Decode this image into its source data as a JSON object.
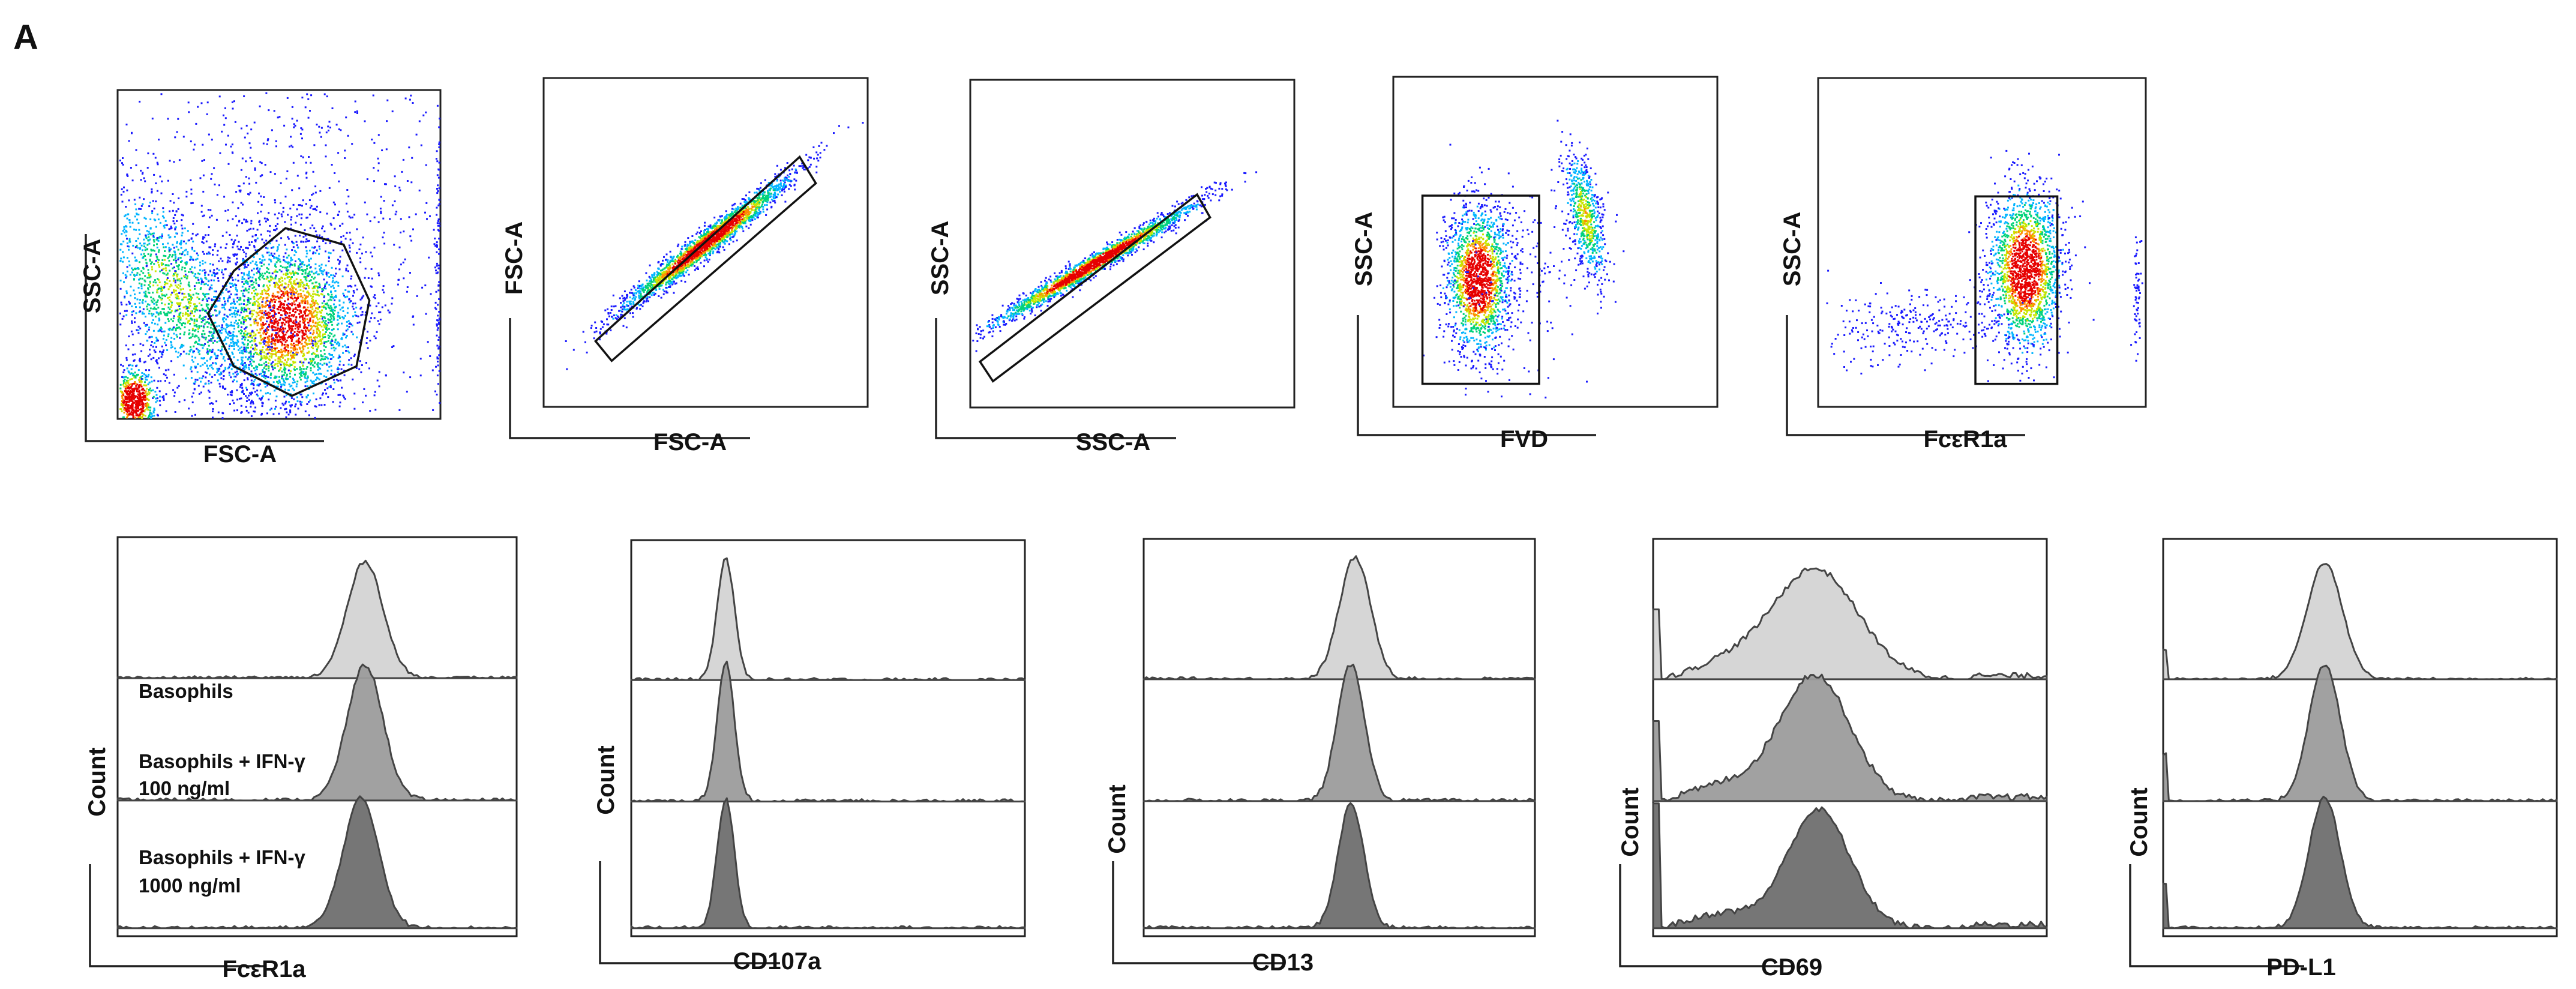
{
  "figure": {
    "panel_label": "A",
    "colors": {
      "density": [
        "#1a1aff",
        "#00b4ff",
        "#00d27a",
        "#c8e600",
        "#ff8c00",
        "#e60000"
      ],
      "histogram_fills": [
        "#d4d4d4",
        "#9c9c9c",
        "#6f6f6f"
      ],
      "histogram_outline": "#444444"
    }
  },
  "chart_data": [
    {
      "type": "scatter",
      "plot": "density",
      "xlabel": "FSC-A",
      "ylabel": "SSC-A",
      "gate": "polygon",
      "note": "debris population at origin; cell population in octagon gate"
    },
    {
      "type": "scatter",
      "plot": "density",
      "xlabel": "FSC-A",
      "ylabel": "FSC-A",
      "gate": "rectangle-diagonal",
      "note": "singlets"
    },
    {
      "type": "scatter",
      "plot": "density",
      "xlabel": "SSC-A",
      "ylabel": "SSC-A",
      "gate": "rectangle-diagonal",
      "note": "singlets"
    },
    {
      "type": "scatter",
      "plot": "density",
      "xlabel": "FVD",
      "ylabel": "SSC-A",
      "gate": "rectangle",
      "note": "live cells (FVD negative) gated; dead cells on right"
    },
    {
      "type": "scatter",
      "plot": "density",
      "xlabel": "FcεR1a",
      "ylabel": "SSC-A",
      "gate": "rectangle",
      "note": "FcεR1a positive basophils"
    },
    {
      "type": "area",
      "plot": "histogram-overlay",
      "xlabel": "FcεR1a",
      "ylabel": "Count",
      "legend": [
        "Basophils",
        "Basophils + IFN-γ 100 ng/ml",
        "Basophils + IFN-γ 1000 ng/ml"
      ],
      "legend_lines": [
        [
          "Basophils"
        ],
        [
          "Basophils + IFN-γ",
          "100 ng/ml"
        ],
        [
          "Basophils + IFN-γ",
          "1000 ng/ml"
        ]
      ],
      "series": [
        {
          "name": "Basophils",
          "peak": 0.62,
          "width": 0.045,
          "height": 0.88
        },
        {
          "name": "Basophils + IFN-γ 100 ng/ml",
          "peak": 0.62,
          "width": 0.045,
          "height": 0.85
        },
        {
          "name": "Basophils + IFN-γ 1000 ng/ml",
          "peak": 0.61,
          "width": 0.045,
          "height": 0.85
        }
      ]
    },
    {
      "type": "area",
      "plot": "histogram-overlay",
      "xlabel": "CD107a",
      "ylabel": "Count",
      "series": [
        {
          "name": "Basophils",
          "peak": 0.24,
          "width": 0.022,
          "height": 0.92
        },
        {
          "name": "Basophils + IFN-γ 100 ng/ml",
          "peak": 0.24,
          "width": 0.022,
          "height": 0.88
        },
        {
          "name": "Basophils + IFN-γ 1000 ng/ml",
          "peak": 0.24,
          "width": 0.022,
          "height": 0.85
        }
      ]
    },
    {
      "type": "area",
      "plot": "histogram-overlay",
      "xlabel": "CD13",
      "ylabel": "Count",
      "series": [
        {
          "name": "Basophils",
          "peak": 0.54,
          "width": 0.04,
          "height": 0.92
        },
        {
          "name": "Basophils + IFN-γ 100 ng/ml",
          "peak": 0.53,
          "width": 0.035,
          "height": 0.86
        },
        {
          "name": "Basophils + IFN-γ 1000 ng/ml",
          "peak": 0.53,
          "width": 0.033,
          "height": 0.82
        }
      ]
    },
    {
      "type": "area",
      "plot": "histogram-overlay",
      "xlabel": "CD69",
      "ylabel": "Count",
      "series": [
        {
          "name": "Basophils",
          "peak": 0.41,
          "width": 0.11,
          "height": 0.88
        },
        {
          "name": "Basophils + IFN-γ 100 ng/ml",
          "peak": 0.41,
          "width": 0.09,
          "height": 0.84
        },
        {
          "name": "Basophils + IFN-γ 1000 ng/ml",
          "peak": 0.42,
          "width": 0.08,
          "height": 0.82
        }
      ]
    },
    {
      "type": "area",
      "plot": "histogram-overlay",
      "xlabel": "PD-L1",
      "ylabel": "Count",
      "series": [
        {
          "name": "Basophils",
          "peak": 0.41,
          "width": 0.045,
          "height": 0.88
        },
        {
          "name": "Basophils + IFN-γ 100 ng/ml",
          "peak": 0.41,
          "width": 0.04,
          "height": 0.86
        },
        {
          "name": "Basophils + IFN-γ 1000 ng/ml",
          "peak": 0.41,
          "width": 0.04,
          "height": 0.86
        }
      ]
    }
  ]
}
